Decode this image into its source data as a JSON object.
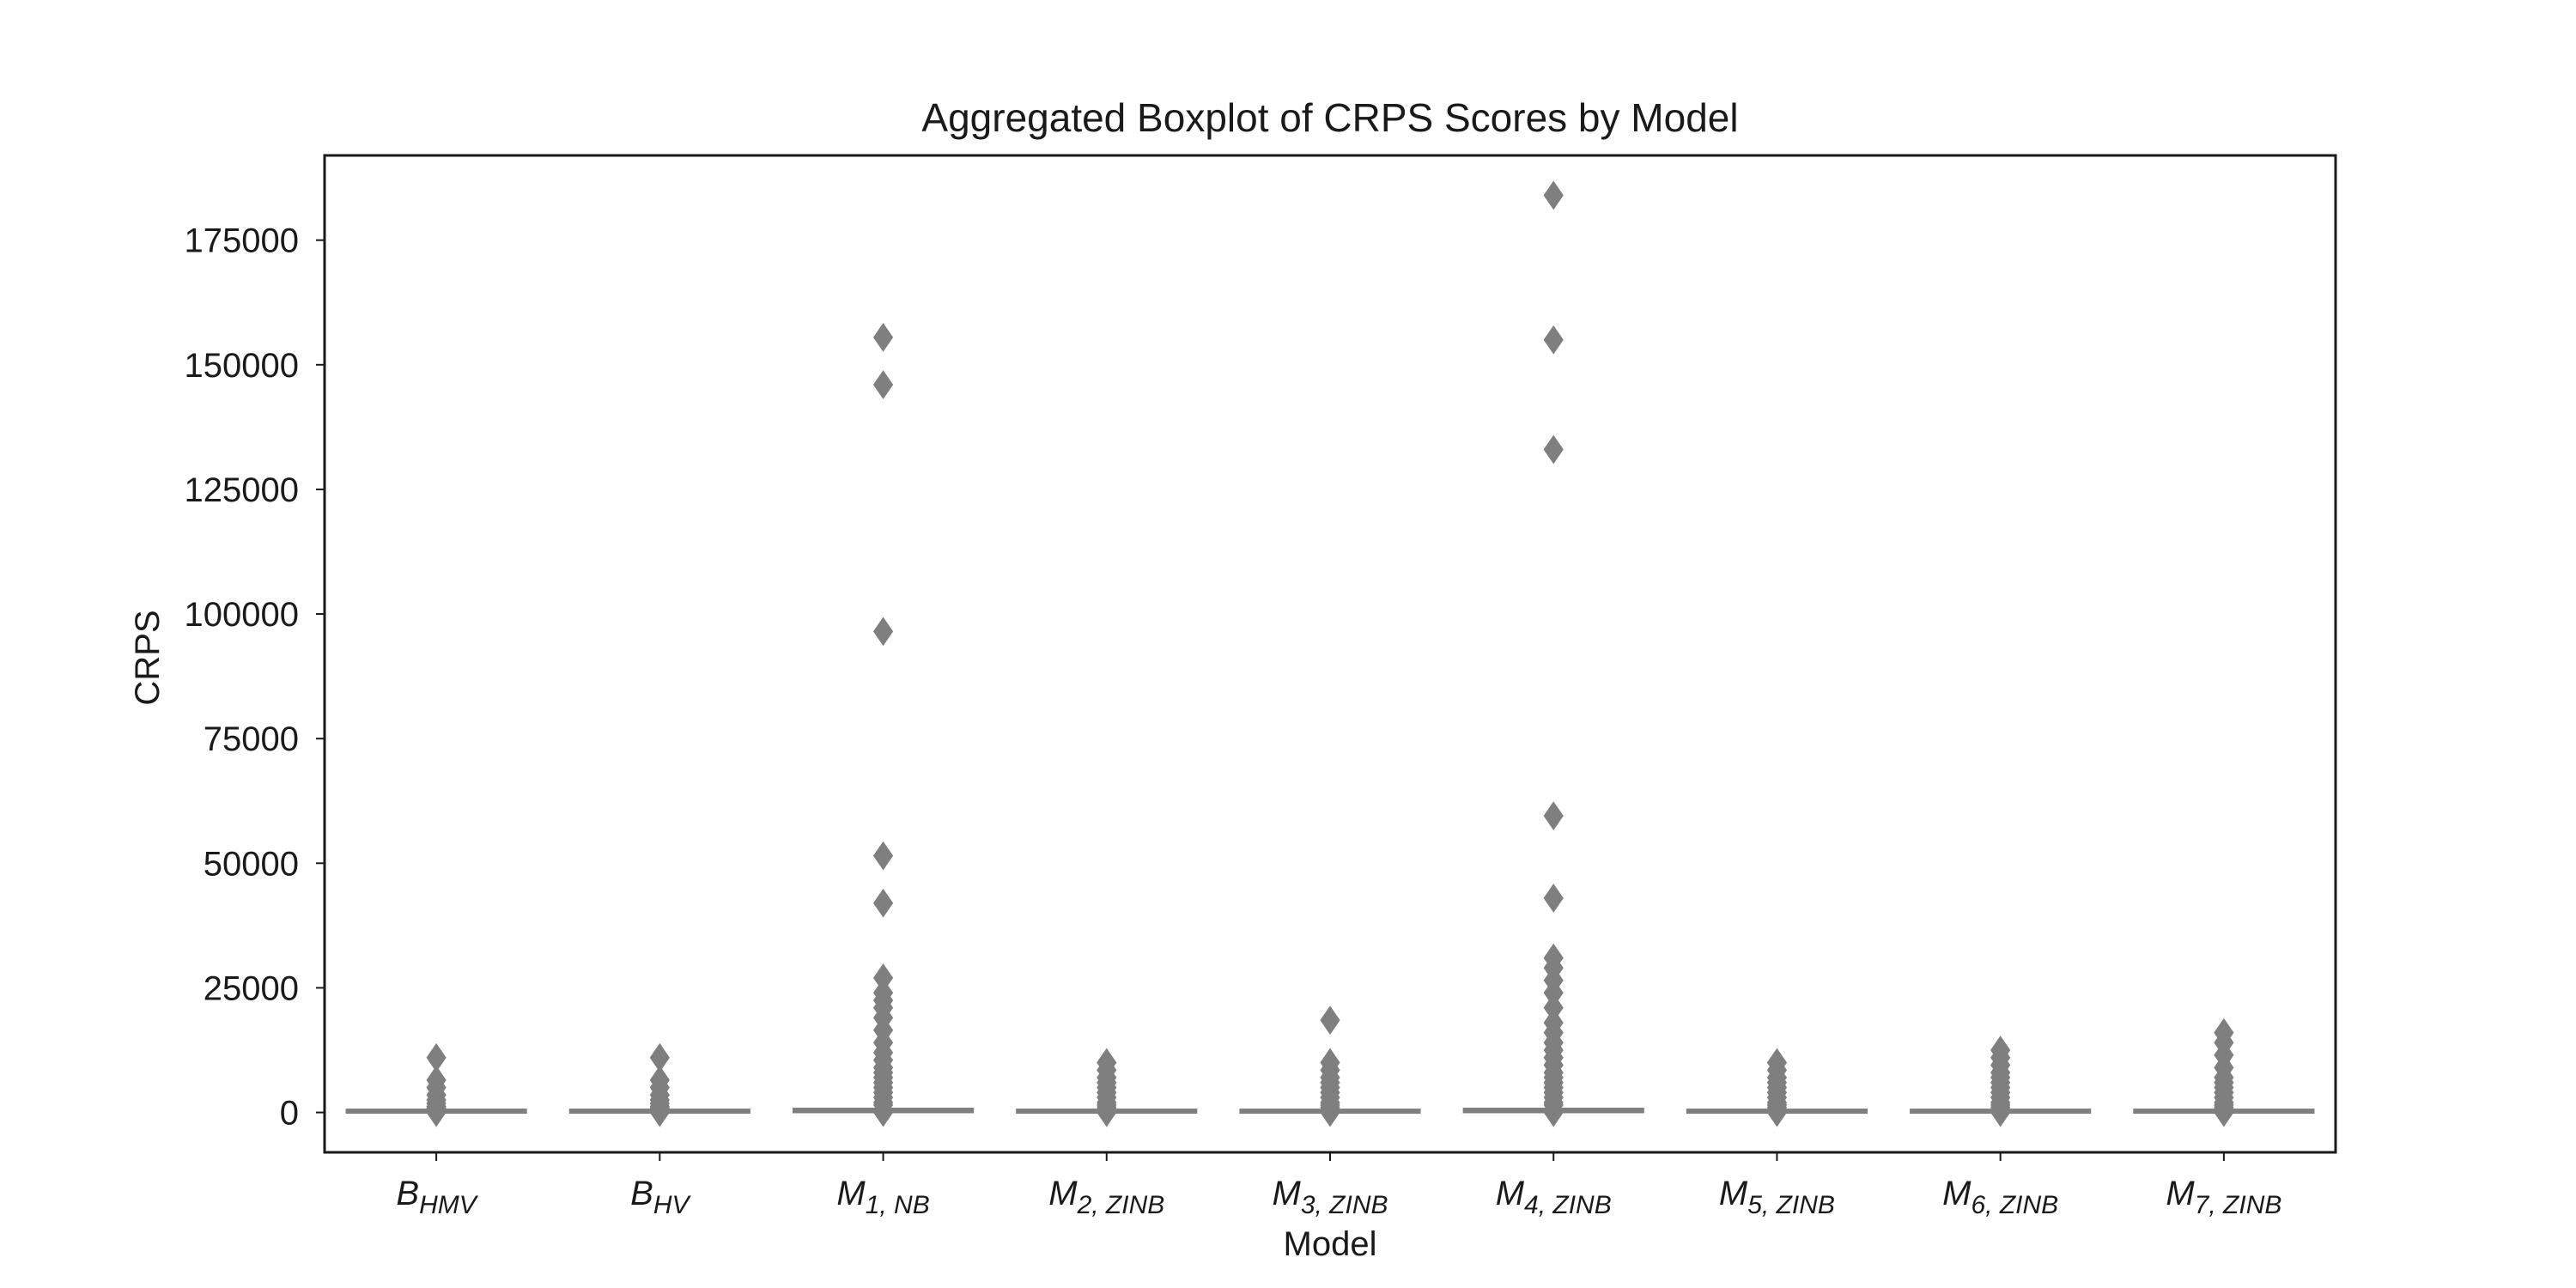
{
  "chart_data": {
    "type": "boxplot",
    "title": "Aggregated Boxplot of CRPS Scores by Model",
    "xlabel": "Model",
    "ylabel": "CRPS",
    "ylim": [
      -8000,
      192000
    ],
    "yticks": [
      0,
      25000,
      50000,
      75000,
      100000,
      125000,
      150000,
      175000
    ],
    "grid": false,
    "colors": {
      "box": "#7f7f7f",
      "frame": "#1a1a1a",
      "text": "#1a1a1a",
      "background": "#ffffff"
    },
    "categories": [
      {
        "base": "B",
        "sub": "HMV"
      },
      {
        "base": "B",
        "sub": "HV"
      },
      {
        "base": "M",
        "sub": "1, NB"
      },
      {
        "base": "M",
        "sub": "2, ZINB"
      },
      {
        "base": "M",
        "sub": "3, ZINB"
      },
      {
        "base": "M",
        "sub": "4, ZINB"
      },
      {
        "base": "M",
        "sub": "5, ZINB"
      },
      {
        "base": "M",
        "sub": "6, ZINB"
      },
      {
        "base": "M",
        "sub": "7, ZINB"
      }
    ],
    "boxes": [
      {
        "q1": 0,
        "median": 100,
        "q3": 300,
        "whisker_low": 0,
        "whisker_high": 600,
        "outliers": [
          11000,
          6500,
          5000,
          3500,
          2500,
          1800,
          1200,
          900,
          700,
          0
        ]
      },
      {
        "q1": 0,
        "median": 100,
        "q3": 300,
        "whisker_low": 0,
        "whisker_high": 600,
        "outliers": [
          11000,
          6500,
          5000,
          3500,
          2500,
          1800,
          1200,
          900,
          700,
          0
        ]
      },
      {
        "q1": 100,
        "median": 300,
        "q3": 700,
        "whisker_low": 0,
        "whisker_high": 1300,
        "outliers": [
          155500,
          146000,
          96500,
          51500,
          42000,
          27000,
          24000,
          22500,
          21000,
          19000,
          16500,
          14000,
          12000,
          10500,
          9000,
          8000,
          7000,
          6000,
          5000,
          4000,
          3000,
          2000,
          1500,
          0
        ]
      },
      {
        "q1": 0,
        "median": 100,
        "q3": 300,
        "whisker_low": 0,
        "whisker_high": 600,
        "outliers": [
          10000,
          8500,
          7000,
          6000,
          5000,
          4000,
          3000,
          2000,
          1500,
          1000,
          0
        ]
      },
      {
        "q1": 0,
        "median": 100,
        "q3": 300,
        "whisker_low": 0,
        "whisker_high": 600,
        "outliers": [
          18500,
          10000,
          8500,
          7000,
          6000,
          5000,
          4000,
          3000,
          2000,
          1500,
          1000,
          0
        ]
      },
      {
        "q1": 100,
        "median": 300,
        "q3": 700,
        "whisker_low": 0,
        "whisker_high": 1300,
        "outliers": [
          184000,
          155000,
          133000,
          59500,
          43000,
          31000,
          29000,
          26500,
          24000,
          21000,
          18000,
          16000,
          14000,
          12500,
          11000,
          9500,
          8000,
          7000,
          6000,
          5000,
          4000,
          3000,
          2000,
          1500,
          0
        ]
      },
      {
        "q1": 0,
        "median": 100,
        "q3": 300,
        "whisker_low": 0,
        "whisker_high": 600,
        "outliers": [
          10000,
          8500,
          7000,
          6000,
          5000,
          4000,
          3000,
          2000,
          1500,
          1000,
          0
        ]
      },
      {
        "q1": 0,
        "median": 100,
        "q3": 300,
        "whisker_low": 0,
        "whisker_high": 600,
        "outliers": [
          12500,
          11000,
          9500,
          8000,
          7000,
          6000,
          5000,
          4000,
          3000,
          2000,
          1500,
          1000,
          0
        ]
      },
      {
        "q1": 0,
        "median": 100,
        "q3": 300,
        "whisker_low": 0,
        "whisker_high": 600,
        "outliers": [
          16000,
          14000,
          11500,
          9000,
          7000,
          6000,
          5000,
          4000,
          3000,
          2000,
          1500,
          1000,
          0
        ]
      }
    ]
  }
}
